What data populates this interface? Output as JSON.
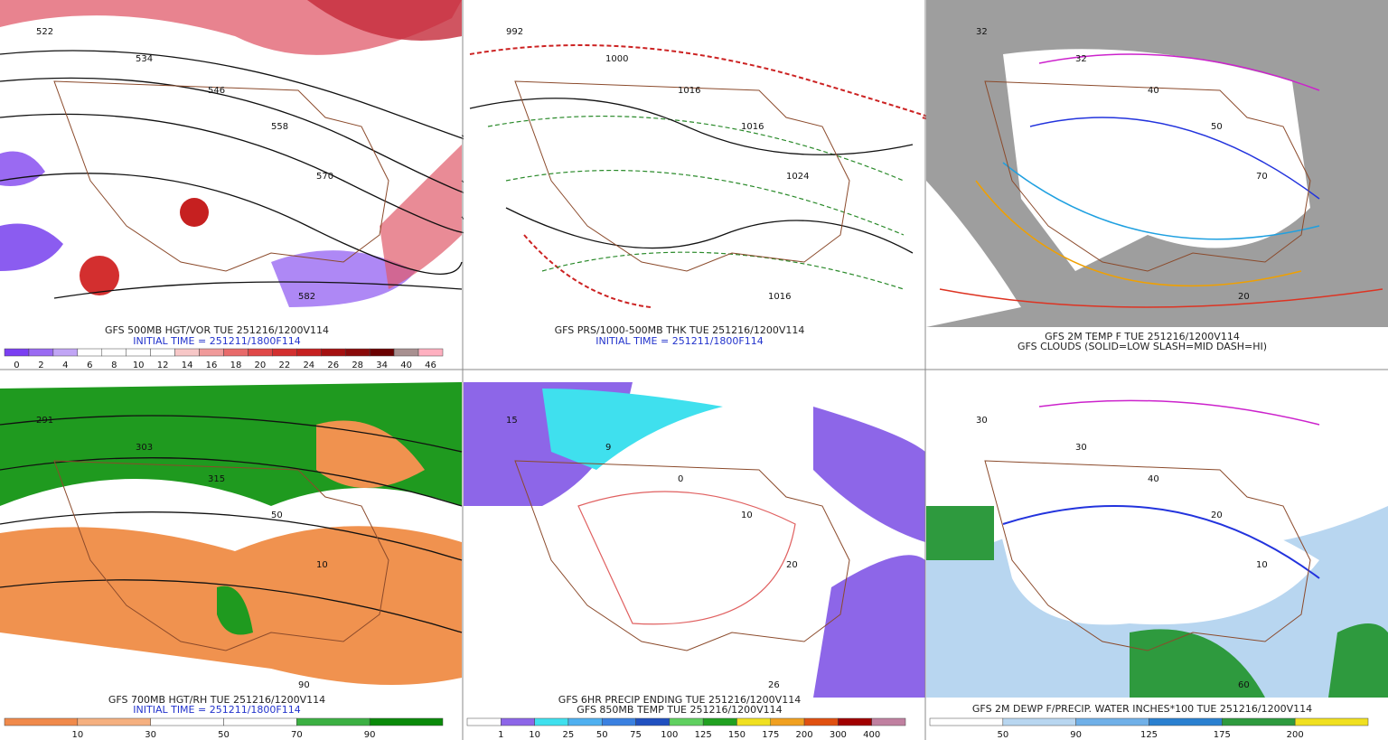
{
  "panels": [
    {
      "caption": [
        "GFS 500MB HGT/VOR TUE 251216/1200V114",
        "INITIAL TIME = 251211/1800F114"
      ],
      "map_labels": [
        "522",
        "534",
        "546",
        "558",
        "570",
        "582"
      ],
      "colorbar": {
        "colors": [
          "#7b3ff2",
          "#9a6af2",
          "#c1a5f5",
          "#ffffff",
          "#ffffff",
          "#ffffff",
          "#ffffff",
          "#f7c7c7",
          "#f09a9a",
          "#e86a6a",
          "#e04848",
          "#d32f2f",
          "#c62020",
          "#a51010",
          "#8a0a0a",
          "#6a0000",
          "#a89090",
          "#ffb0c0"
        ],
        "labels": [
          "0",
          "2",
          "4",
          "6",
          "8",
          "10",
          "12",
          "14",
          "16",
          "18",
          "20",
          "22",
          "24",
          "26",
          "28",
          "34",
          "40",
          "46"
        ]
      }
    },
    {
      "caption": [
        "GFS PRS/1000-500MB THK TUE 251216/1200V114",
        "INITIAL TIME = 251211/1800F114"
      ],
      "map_labels": [
        "992",
        "1000",
        "1016",
        "1016",
        "1024",
        "1016"
      ]
    },
    {
      "caption": [
        "GFS 2M TEMP F TUE 251216/1200V114",
        "GFS CLOUDS (SOLID=LOW SLASH=MID DASH=HI)"
      ],
      "map_labels": [
        "32",
        "32",
        "40",
        "50",
        "70",
        "20"
      ]
    },
    {
      "caption": [
        "GFS 700MB HGT/RH TUE 251216/1200V114",
        "INITIAL TIME = 251211/1800F114"
      ],
      "map_labels": [
        "291",
        "303",
        "315",
        "50",
        "10",
        "90"
      ],
      "colorbar": {
        "colors": [
          "#f08a4b",
          "#f5b080",
          "#ffffff",
          "#ffffff",
          "#3cb043",
          "#0a8a0a"
        ],
        "labels": [
          "10",
          "30",
          "50",
          "70",
          "90"
        ]
      }
    },
    {
      "caption": [
        "GFS 6HR PRECIP ENDING TUE 251216/1200V114",
        "GFS 850MB TEMP TUE 251216/1200V114"
      ],
      "map_labels": [
        "15",
        "9",
        "0",
        "10",
        "20",
        "26"
      ],
      "colorbar": {
        "colors": [
          "#ffffff",
          "#8d66e8",
          "#3fe0ee",
          "#4fb0f0",
          "#3a80e0",
          "#2050c0",
          "#60d060",
          "#20a020",
          "#f0e020",
          "#f0a020",
          "#e05010",
          "#a00000",
          "#c080a0"
        ],
        "labels": [
          "1",
          "10",
          "25",
          "50",
          "75",
          "100",
          "125",
          "150",
          "175",
          "200",
          "300",
          "400"
        ]
      }
    },
    {
      "caption": [
        "GFS 2M DEWP F/PRECIP. WATER INCHES*100 TUE 251216/1200V114"
      ],
      "map_labels": [
        "30",
        "30",
        "40",
        "20",
        "10",
        "60"
      ],
      "colorbar": {
        "colors": [
          "#ffffff",
          "#b8d6f0",
          "#70b0e8",
          "#2a80d0",
          "#2e9a3e",
          "#f0e020"
        ],
        "labels": [
          "50",
          "90",
          "125",
          "175",
          "200"
        ]
      }
    }
  ]
}
